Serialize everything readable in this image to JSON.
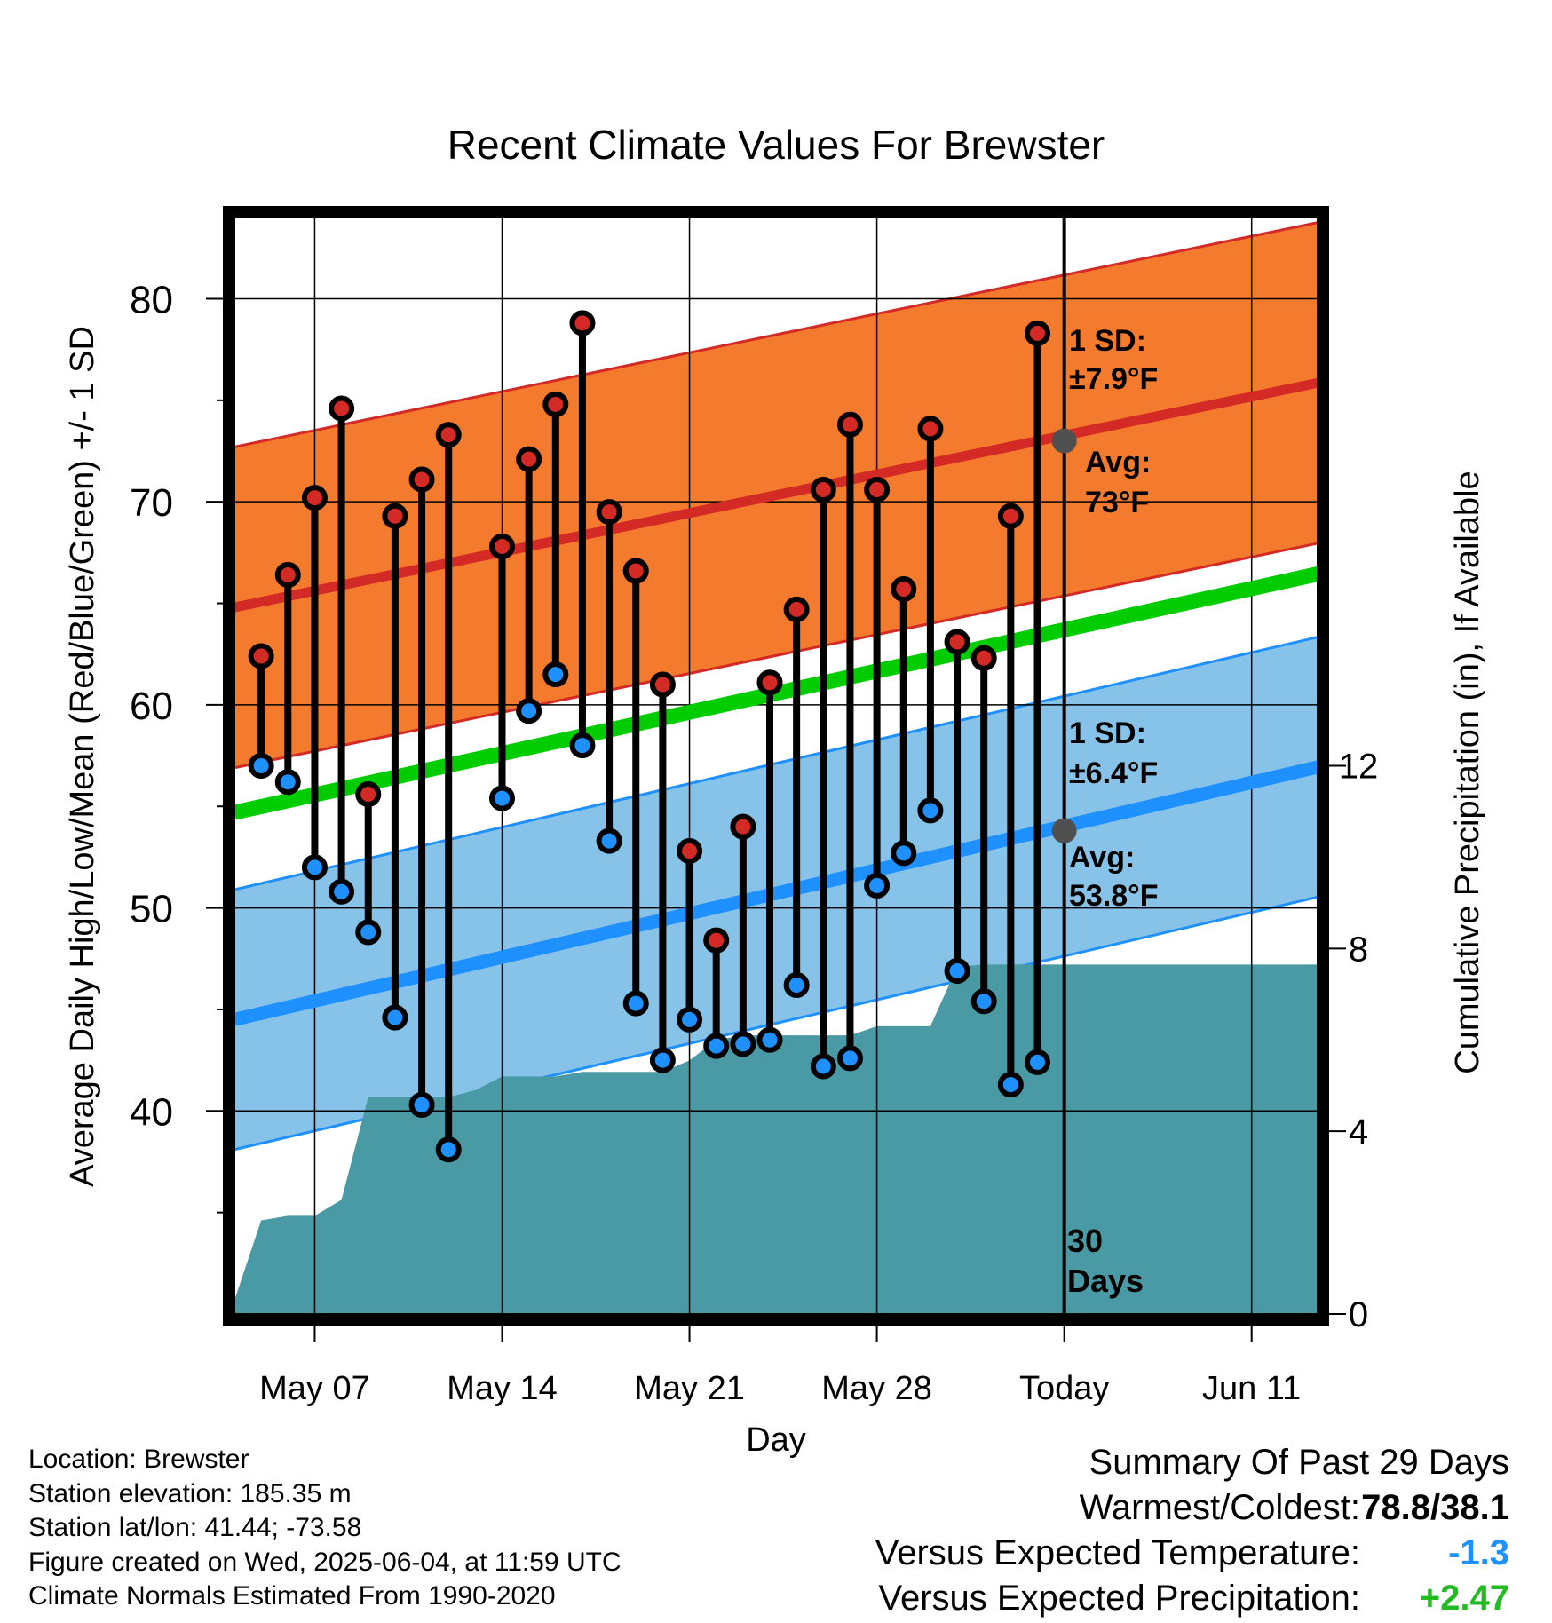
{
  "chart_data": {
    "type": "line",
    "title": "Recent Climate Values For Brewster",
    "xlabel": "Day",
    "ylabel": "Average Daily High/Low/Mean (Red/Blue/Green) +/- 1 SD",
    "y2label": "Cumulative Precipitation (in), If Available",
    "x_range": [
      "2025-05-04",
      "2025-06-14"
    ],
    "ylim": [
      30,
      84
    ],
    "y2lim": [
      0,
      24
    ],
    "grid": true,
    "x_ticks": [
      {
        "date": "2025-05-07",
        "label": "May 07"
      },
      {
        "date": "2025-05-14",
        "label": "May 14"
      },
      {
        "date": "2025-05-21",
        "label": "May 21"
      },
      {
        "date": "2025-05-28",
        "label": "May 28"
      },
      {
        "date": "2025-06-04",
        "label": "Today"
      },
      {
        "date": "2025-06-11",
        "label": "Jun 11"
      }
    ],
    "y_ticks": [
      40,
      50,
      60,
      70,
      80
    ],
    "y2_ticks": [
      0,
      4,
      8,
      12
    ],
    "today": "2025-06-04",
    "period_label": "30 Days",
    "normals": {
      "dates": [
        "2025-05-04",
        "2025-06-14"
      ],
      "avg_high": [
        64.8,
        76.0
      ],
      "avg_low": [
        44.5,
        57.1
      ],
      "avg_mean": [
        54.7,
        66.6
      ],
      "high_sd": 7.9,
      "low_sd": 6.4
    },
    "annotations": {
      "high_sd_label": "1 SD:",
      "high_sd_value": "±7.9°F",
      "high_avg_label": "Avg:",
      "high_avg_value": "73°F",
      "low_sd_label": "1 SD:",
      "low_sd_value": "±6.4°F",
      "low_avg_label": "Avg:",
      "low_avg_value": "53.8°F",
      "today_high_avg": 73.0,
      "today_low_avg": 53.8
    },
    "daily": {
      "dates": [
        "2025-05-05",
        "2025-05-06",
        "2025-05-07",
        "2025-05-08",
        "2025-05-09",
        "2025-05-10",
        "2025-05-11",
        "2025-05-12",
        "2025-05-14",
        "2025-05-15",
        "2025-05-16",
        "2025-05-17",
        "2025-05-18",
        "2025-05-19",
        "2025-05-20",
        "2025-05-21",
        "2025-05-22",
        "2025-05-23",
        "2025-05-24",
        "2025-05-25",
        "2025-05-26",
        "2025-05-27",
        "2025-05-28",
        "2025-05-29",
        "2025-05-30",
        "2025-05-31",
        "2025-06-01",
        "2025-06-02",
        "2025-06-03"
      ],
      "high": [
        62.4,
        66.4,
        70.2,
        74.6,
        55.6,
        69.3,
        71.1,
        73.3,
        67.8,
        72.1,
        74.8,
        78.8,
        69.5,
        66.6,
        61.0,
        52.8,
        48.4,
        54.0,
        61.1,
        64.7,
        70.6,
        73.8,
        70.6,
        65.7,
        73.6,
        63.1,
        62.3,
        69.3,
        78.3
      ],
      "low": [
        57.0,
        56.2,
        52.0,
        50.8,
        48.8,
        44.6,
        40.3,
        38.1,
        55.4,
        59.7,
        61.5,
        58.0,
        53.3,
        45.3,
        42.5,
        44.5,
        43.2,
        43.3,
        43.5,
        46.2,
        42.2,
        42.6,
        51.1,
        52.7,
        54.8,
        46.9,
        45.4,
        41.3,
        42.4
      ]
    },
    "precip": {
      "dates": [
        "2025-05-04",
        "2025-05-05",
        "2025-05-06",
        "2025-05-07",
        "2025-05-08",
        "2025-05-09",
        "2025-05-10",
        "2025-05-11",
        "2025-05-12",
        "2025-05-13",
        "2025-05-14",
        "2025-05-15",
        "2025-05-16",
        "2025-05-17",
        "2025-05-18",
        "2025-05-19",
        "2025-05-20",
        "2025-05-21",
        "2025-05-22",
        "2025-05-23",
        "2025-05-24",
        "2025-05-25",
        "2025-05-26",
        "2025-05-27",
        "2025-05-28",
        "2025-05-29",
        "2025-05-30",
        "2025-05-31",
        "2025-06-01",
        "2025-06-14"
      ],
      "values": [
        0.3,
        2.05,
        2.15,
        2.15,
        2.5,
        4.75,
        4.75,
        4.75,
        4.75,
        4.9,
        5.2,
        5.2,
        5.2,
        5.3,
        5.3,
        5.3,
        5.3,
        5.55,
        6.0,
        6.1,
        6.1,
        6.1,
        6.1,
        6.1,
        6.3,
        6.3,
        6.3,
        7.6,
        7.65,
        7.65
      ]
    },
    "colors": {
      "high_band": "#f47a2e",
      "high_line": "#d42a26",
      "low_band": "#87c2e8",
      "low_line": "#1e90ff",
      "mean_line": "#00cc00",
      "precip_fill": "#4a9aa5",
      "high_dot": "#d42a26",
      "low_dot": "#1e90ff",
      "annotation_text": "#505050"
    }
  },
  "footer": {
    "location": "Location: Brewster",
    "elevation": "Station elevation: 185.35 m",
    "latlon": "Station lat/lon: 41.44; -73.58",
    "created": "Figure created on Wed, 2025-06-04, at 11:59 UTC",
    "normals": "Climate Normals Estimated From 1990-2020"
  },
  "summary": {
    "title": "Summary Of Past 29 Days",
    "warmest_label": "Warmest/Coldest:",
    "warmest_value": "78.8/38.1",
    "temp_label": "Versus Expected Temperature:",
    "temp_value": "-1.3",
    "temp_color": "#1e90ff",
    "precip_label": "Versus Expected Precipitation:",
    "precip_value": "+2.47",
    "precip_color": "#22bb22"
  }
}
